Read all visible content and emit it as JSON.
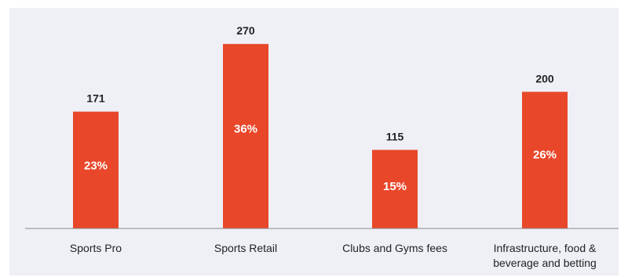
{
  "colors": {
    "bar": "#e8472a",
    "plot_background": "#eef0f5",
    "axis": "#8a8a8a",
    "text": "#222222",
    "bar_text": "#ffffff"
  },
  "chart_data": {
    "type": "bar",
    "title": "",
    "xlabel": "",
    "ylabel": "",
    "ylim": [
      0,
      300
    ],
    "grid": false,
    "legend": "none",
    "categories": [
      [
        "Sports Pro"
      ],
      [
        "Sports Retail"
      ],
      [
        "Clubs and Gyms fees"
      ],
      [
        "Infrastructure, food &",
        "beverage and betting"
      ]
    ],
    "values": [
      171,
      270,
      115,
      200
    ],
    "value_labels": [
      "171",
      "270",
      "115",
      "200"
    ],
    "percent_labels": [
      "23%",
      "36%",
      "15%",
      "26%"
    ]
  }
}
